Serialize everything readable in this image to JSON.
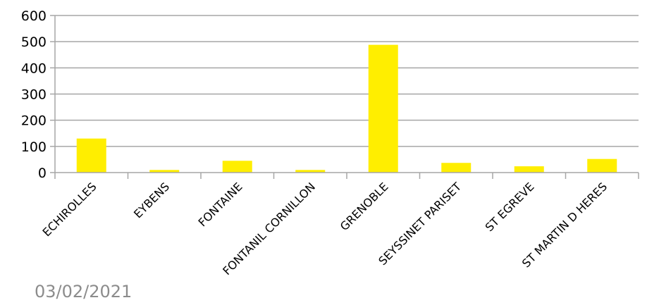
{
  "chart_data": {
    "type": "bar",
    "categories": [
      "ECHIROLLES",
      "EYBENS",
      "FONTAINE",
      "FONTANIL CORNILLON",
      "GRENOBLE",
      "SEYSSINET PARISET",
      "ST EGREVE",
      "ST MARTIN D HERES"
    ],
    "values": [
      130,
      10,
      45,
      10,
      488,
      37,
      24,
      52
    ],
    "ylim": [
      0,
      600
    ],
    "yticks": [
      "0",
      "100",
      "200",
      "300",
      "400",
      "500",
      "600"
    ],
    "grid": true,
    "legend": "none",
    "bar_color": "#ffee00",
    "grid_color": "#a6a6a6"
  },
  "footer": {
    "date": "03/02/2021"
  }
}
